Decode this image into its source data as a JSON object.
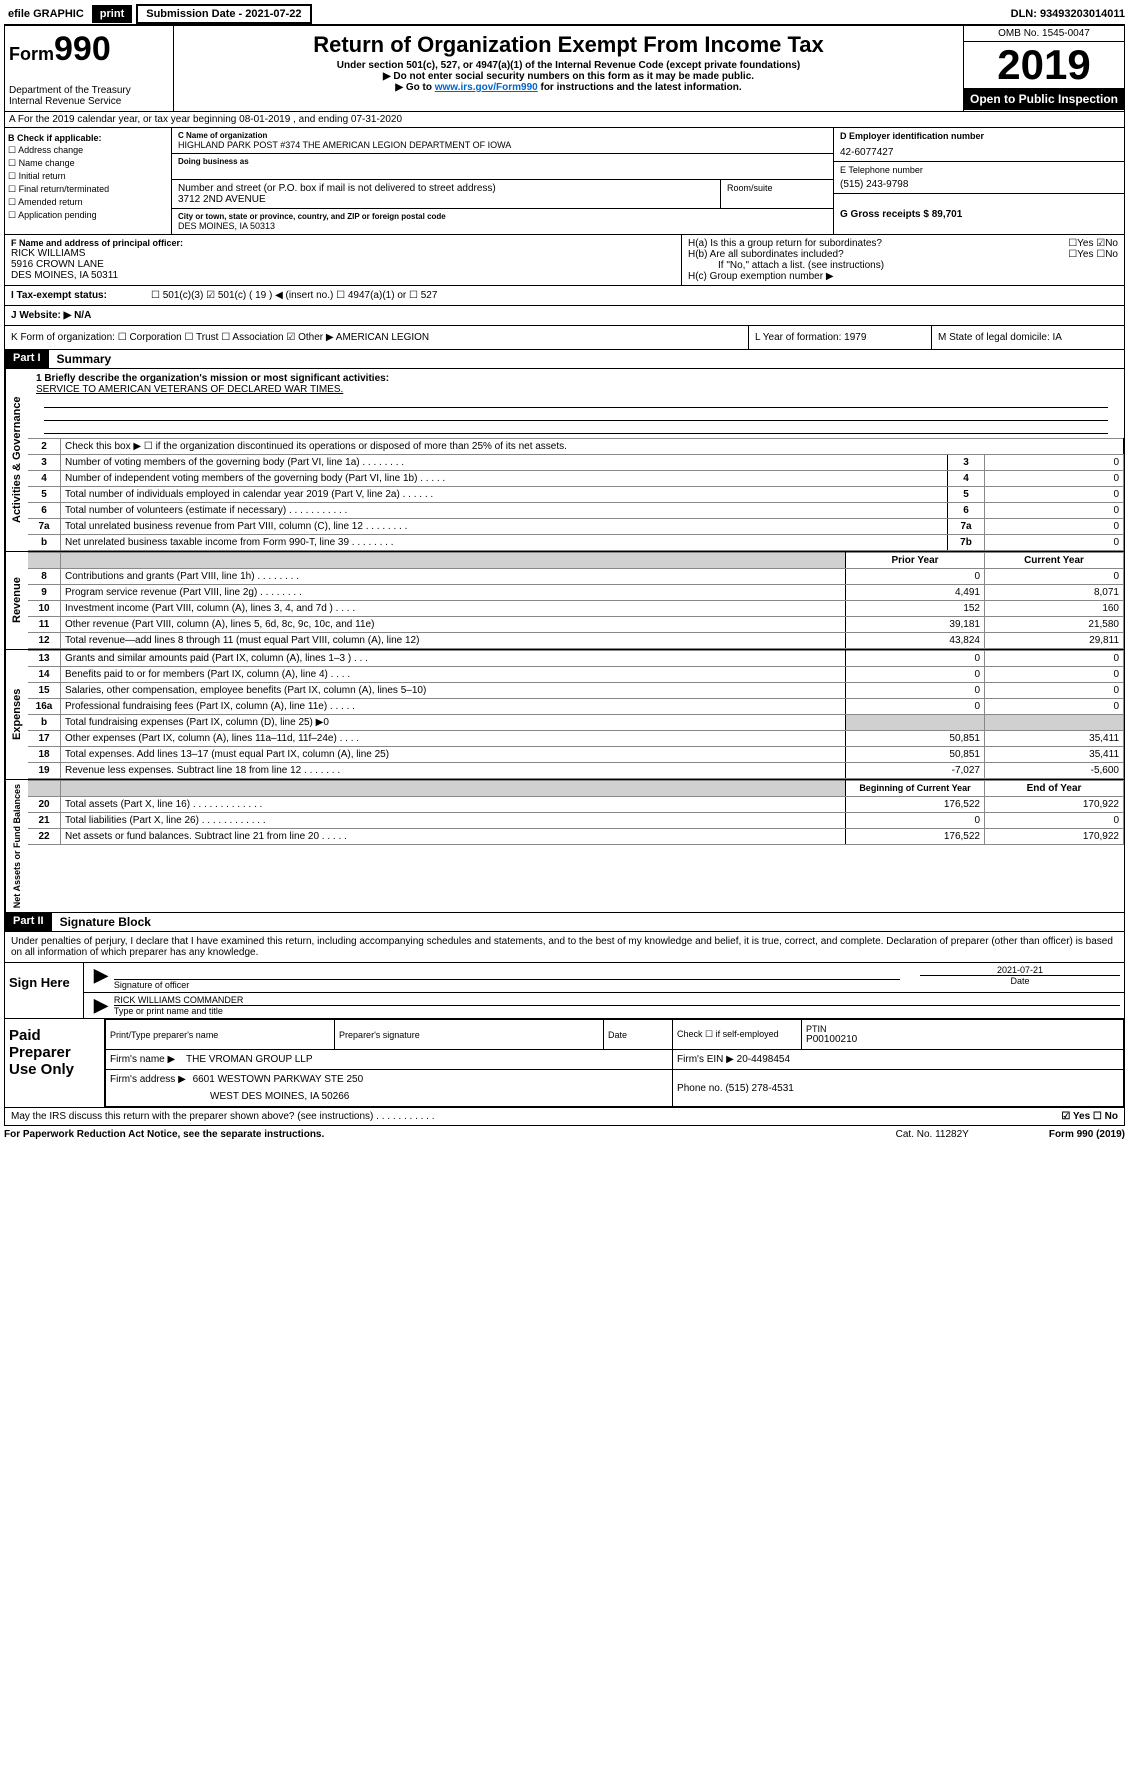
{
  "topbar": {
    "efile": "efile GRAPHIC",
    "print": "print",
    "sub_date_label": "Submission Date - 2021-07-22",
    "dln": "DLN: 93493203014011"
  },
  "header": {
    "form_prefix": "Form",
    "form_number": "990",
    "dept1": "Department of the Treasury",
    "dept2": "Internal Revenue Service",
    "title": "Return of Organization Exempt From Income Tax",
    "sub1": "Under section 501(c), 527, or 4947(a)(1) of the Internal Revenue Code (except private foundations)",
    "sub2": "▶ Do not enter social security numbers on this form as it may be made public.",
    "sub3_pre": "▶ Go to ",
    "sub3_link": "www.irs.gov/Form990",
    "sub3_post": " for instructions and the latest information.",
    "omb": "OMB No. 1545-0047",
    "year": "2019",
    "open": "Open to Public Inspection"
  },
  "rowA": "A For the 2019 calendar year, or tax year beginning 08-01-2019   , and ending 07-31-2020",
  "colB": {
    "head": "B Check if applicable:",
    "items": [
      "☐ Address change",
      "☐ Name change",
      "☐ Initial return",
      "☐ Final return/terminated",
      "☐ Amended return",
      "☐ Application pending"
    ]
  },
  "colC": {
    "name_label": "C Name of organization",
    "name": "HIGHLAND PARK POST #374 THE AMERICAN LEGION DEPARTMENT OF IOWA",
    "dba_label": "Doing business as",
    "addr_label": "Number and street (or P.O. box if mail is not delivered to street address)",
    "room_label": "Room/suite",
    "addr": "3712 2ND AVENUE",
    "city_label": "City or town, state or province, country, and ZIP or foreign postal code",
    "city": "DES MOINES, IA  50313"
  },
  "colD": {
    "d_label": "D Employer identification number",
    "d_val": "42-6077427",
    "e_label": "E Telephone number",
    "e_val": "(515) 243-9798",
    "g_label": "G Gross receipts $ 89,701"
  },
  "rowF": {
    "f_label": "F Name and address of principal officer:",
    "f_name": "RICK WILLIAMS",
    "f_addr1": "5916 CROWN LANE",
    "f_addr2": "DES MOINES, IA  50311",
    "ha": "H(a)  Is this a group return for subordinates?",
    "ha_ans": "☐Yes ☑No",
    "hb": "H(b)  Are all subordinates included?",
    "hb_ans": "☐Yes ☐No",
    "hb_note": "If \"No,\" attach a list. (see instructions)",
    "hc": "H(c)  Group exemption number ▶"
  },
  "rowI": {
    "label": "I   Tax-exempt status:",
    "opts": "☐ 501(c)(3)   ☑ 501(c) ( 19 ) ◀ (insert no.)   ☐ 4947(a)(1) or   ☐ 527"
  },
  "rowJ": "J   Website: ▶  N/A",
  "rowK": {
    "k": "K Form of organization:  ☐ Corporation  ☐ Trust  ☐ Association  ☑ Other ▶ AMERICAN LEGION",
    "l": "L Year of formation: 1979",
    "m": "M State of legal domicile: IA"
  },
  "part1": {
    "header": "Part I",
    "title": "Summary",
    "line1_label": "1  Briefly describe the organization's mission or most significant activities:",
    "line1_val": "SERVICE TO AMERICAN VETERANS OF DECLARED WAR TIMES.",
    "sections": {
      "gov": "Activities & Governance",
      "rev": "Revenue",
      "exp": "Expenses",
      "net": "Net Assets or Fund Balances"
    },
    "gov_lines": [
      {
        "n": "2",
        "d": "Check this box ▶ ☐  if the organization discontinued its operations or disposed of more than 25% of its net assets.",
        "b": "",
        "v": ""
      },
      {
        "n": "3",
        "d": "Number of voting members of the governing body (Part VI, line 1a)  .   .   .   .   .   .   .   .",
        "b": "3",
        "v": "0"
      },
      {
        "n": "4",
        "d": "Number of independent voting members of the governing body (Part VI, line 1b)  .   .   .   .   .",
        "b": "4",
        "v": "0"
      },
      {
        "n": "5",
        "d": "Total number of individuals employed in calendar year 2019 (Part V, line 2a)  .   .   .   .   .   .",
        "b": "5",
        "v": "0"
      },
      {
        "n": "6",
        "d": "Total number of volunteers (estimate if necessary)  .   .   .   .   .   .   .   .   .   .   .",
        "b": "6",
        "v": "0"
      },
      {
        "n": "7a",
        "d": "Total unrelated business revenue from Part VIII, column (C), line 12  .   .   .   .   .   .   .   .",
        "b": "7a",
        "v": "0"
      },
      {
        "n": "b",
        "d": "Net unrelated business taxable income from Form 990-T, line 39  .   .   .   .   .   .   .   .",
        "b": "7b",
        "v": "0"
      }
    ],
    "col_headers": {
      "prior": "Prior Year",
      "current": "Current Year"
    },
    "rev_lines": [
      {
        "n": "8",
        "d": "Contributions and grants (Part VIII, line 1h)  .   .   .   .   .   .   .   .",
        "p": "0",
        "c": "0"
      },
      {
        "n": "9",
        "d": "Program service revenue (Part VIII, line 2g)  .   .   .   .   .   .   .   .",
        "p": "4,491",
        "c": "8,071"
      },
      {
        "n": "10",
        "d": "Investment income (Part VIII, column (A), lines 3, 4, and 7d )  .   .   .   .",
        "p": "152",
        "c": "160"
      },
      {
        "n": "11",
        "d": "Other revenue (Part VIII, column (A), lines 5, 6d, 8c, 9c, 10c, and 11e)",
        "p": "39,181",
        "c": "21,580"
      },
      {
        "n": "12",
        "d": "Total revenue—add lines 8 through 11 (must equal Part VIII, column (A), line 12)",
        "p": "43,824",
        "c": "29,811"
      }
    ],
    "exp_lines": [
      {
        "n": "13",
        "d": "Grants and similar amounts paid (Part IX, column (A), lines 1–3 )  .   .   .",
        "p": "0",
        "c": "0"
      },
      {
        "n": "14",
        "d": "Benefits paid to or for members (Part IX, column (A), line 4)  .   .   .   .",
        "p": "0",
        "c": "0"
      },
      {
        "n": "15",
        "d": "Salaries, other compensation, employee benefits (Part IX, column (A), lines 5–10)",
        "p": "0",
        "c": "0"
      },
      {
        "n": "16a",
        "d": "Professional fundraising fees (Part IX, column (A), line 11e)  .   .   .   .   .",
        "p": "0",
        "c": "0"
      },
      {
        "n": "b",
        "d": "Total fundraising expenses (Part IX, column (D), line 25) ▶0",
        "p": "shade",
        "c": "shade"
      },
      {
        "n": "17",
        "d": "Other expenses (Part IX, column (A), lines 11a–11d, 11f–24e)  .   .   .   .",
        "p": "50,851",
        "c": "35,411"
      },
      {
        "n": "18",
        "d": "Total expenses. Add lines 13–17 (must equal Part IX, column (A), line 25)",
        "p": "50,851",
        "c": "35,411"
      },
      {
        "n": "19",
        "d": "Revenue less expenses. Subtract line 18 from line 12  .   .   .   .   .   .   .",
        "p": "-7,027",
        "c": "-5,600"
      }
    ],
    "net_headers": {
      "begin": "Beginning of Current Year",
      "end": "End of Year"
    },
    "net_lines": [
      {
        "n": "20",
        "d": "Total assets (Part X, line 16)  .   .   .   .   .   .   .   .   .   .   .   .   .",
        "p": "176,522",
        "c": "170,922"
      },
      {
        "n": "21",
        "d": "Total liabilities (Part X, line 26)  .   .   .   .   .   .   .   .   .   .   .   .",
        "p": "0",
        "c": "0"
      },
      {
        "n": "22",
        "d": "Net assets or fund balances. Subtract line 21 from line 20  .   .   .   .   .",
        "p": "176,522",
        "c": "170,922"
      }
    ]
  },
  "part2": {
    "header": "Part II",
    "title": "Signature Block",
    "perjury": "Under penalties of perjury, I declare that I have examined this return, including accompanying schedules and statements, and to the best of my knowledge and belief, it is true, correct, and complete. Declaration of preparer (other than officer) is based on all information of which preparer has any knowledge.",
    "sign_here": "Sign Here",
    "sig_officer": "Signature of officer",
    "sig_date": "2021-07-21",
    "date_label": "Date",
    "typed_name": "RICK WILLIAMS  COMMANDER",
    "typed_label": "Type or print name and title",
    "paid": "Paid Preparer Use Only",
    "prep_name_label": "Print/Type preparer's name",
    "prep_sig_label": "Preparer's signature",
    "prep_date_label": "Date",
    "self_emp": "Check ☐ if self-employed",
    "ptin_label": "PTIN",
    "ptin": "P00100210",
    "firm_name_label": "Firm's name    ▶",
    "firm_name": "THE VROMAN GROUP LLP",
    "firm_ein_label": "Firm's EIN ▶",
    "firm_ein": "20-4498454",
    "firm_addr_label": "Firm's address ▶",
    "firm_addr1": "6601 WESTOWN PARKWAY STE 250",
    "firm_addr2": "WEST DES MOINES, IA  50266",
    "phone_label": "Phone no.",
    "phone": "(515) 278-4531"
  },
  "footer": {
    "discuss": "May the IRS discuss this return with the preparer shown above? (see instructions)  .   .   .   .   .   .   .   .   .   .   .",
    "discuss_ans": "☑ Yes   ☐ No",
    "paperwork": "For Paperwork Reduction Act Notice, see the separate instructions.",
    "cat": "Cat. No. 11282Y",
    "form": "Form 990 (2019)"
  }
}
